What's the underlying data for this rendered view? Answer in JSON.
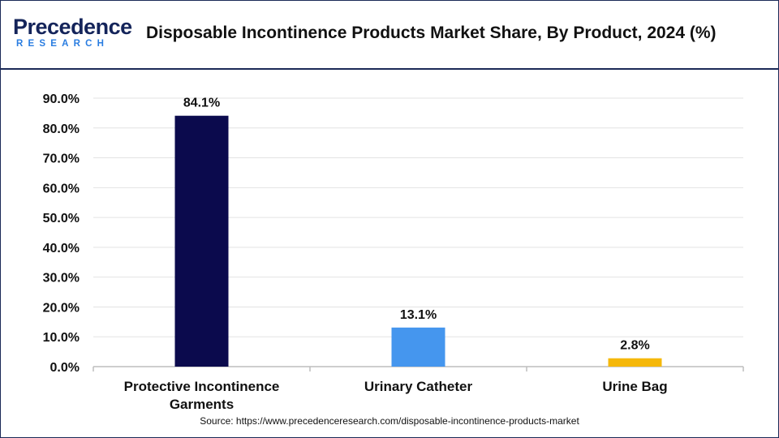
{
  "header": {
    "logo_top": "Precedence",
    "logo_bottom": "RESEARCH",
    "title": "Disposable Incontinence Products Market Share, By Product, 2024 (%)"
  },
  "source": "Source: https://www.precedenceresearch.com/disposable-incontinence-products-market",
  "chart_data": {
    "type": "bar",
    "title": "Disposable Incontinence Products Market Share, By Product, 2024 (%)",
    "categories": [
      [
        "Protective Incontinence",
        "Garments"
      ],
      [
        "Urinary Catheter"
      ],
      [
        "Urine Bag"
      ]
    ],
    "values": [
      84.1,
      13.1,
      2.8
    ],
    "data_labels": [
      "84.1%",
      "13.1%",
      "2.8%"
    ],
    "colors": [
      "#0b0a4d",
      "#4596ee",
      "#f5b80b"
    ],
    "yticks": [
      "0.0%",
      "10.0%",
      "20.0%",
      "30.0%",
      "40.0%",
      "50.0%",
      "60.0%",
      "70.0%",
      "80.0%",
      "90.0%"
    ],
    "ylim": [
      0,
      90
    ],
    "xlabel": "",
    "ylabel": "",
    "grid": true,
    "legend": "none"
  }
}
